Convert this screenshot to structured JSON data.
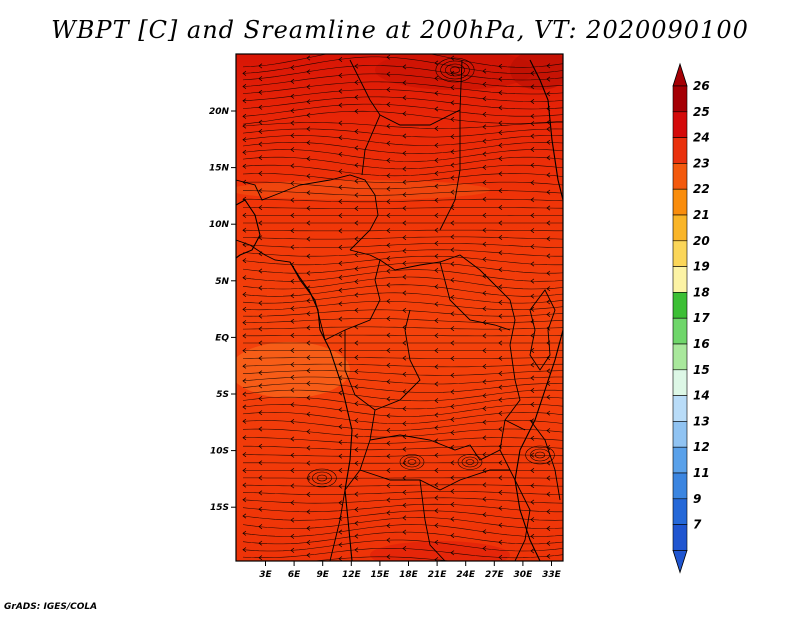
{
  "title": "WBPT [C] and Sreamline at 200hPa, VT: 2020090100",
  "credit": "GrADS: IGES/COLA",
  "map": {
    "lon_labels": [
      "3E",
      "6E",
      "9E",
      "12E",
      "15E",
      "18E",
      "21E",
      "24E",
      "27E",
      "30E",
      "33E"
    ],
    "lat_labels": [
      "20N",
      "15N",
      "10N",
      "5N",
      "EQ",
      "5S",
      "10S",
      "15S"
    ],
    "fill_colors": {
      "base": "#f43b0a",
      "darker_north": "#e61e05",
      "lighter_band": "#f75c14",
      "orange_patch": "#f87816"
    }
  },
  "colorbar": {
    "labels": [
      "26",
      "25",
      "24",
      "23",
      "22",
      "21",
      "20",
      "19",
      "18",
      "17",
      "16",
      "15",
      "14",
      "13",
      "12",
      "11",
      "9",
      "7"
    ],
    "colors": [
      "#a50005",
      "#d40a0a",
      "#e9310d",
      "#f3590c",
      "#f98d0d",
      "#f9b528",
      "#fbd659",
      "#fcf3a5",
      "#3cbf35",
      "#6fd66a",
      "#a9e89c",
      "#ddf7e6",
      "#b9dcf8",
      "#90c3f2",
      "#5aa1ea",
      "#3b85e0",
      "#2568d8",
      "#1f55d0"
    ],
    "top_arrow_color": "#a50005",
    "bottom_arrow_color": "#1f55d0"
  }
}
